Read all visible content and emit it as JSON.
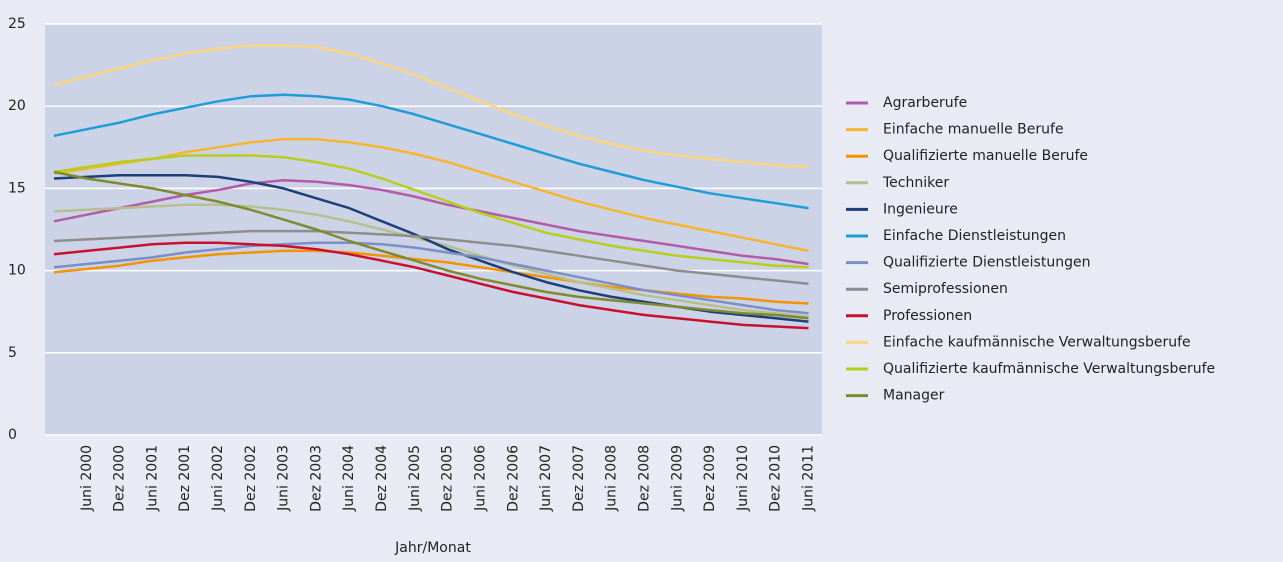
{
  "chart_data": {
    "type": "line",
    "x_label": "Jahr/Monat",
    "categories": [
      null,
      "Juni 2000",
      "Dez 2000",
      "Juni 2001",
      "Dez 2001",
      "Juni 2002",
      "Dez 2002",
      "Juni 2003",
      "Dez 2003",
      "Juni 2004",
      "Dez 2004",
      "Juni 2005",
      "Dez 2005",
      "Juni 2006",
      "Dez 2006",
      "Juni 2007",
      "Dez 2007",
      "Juni 2008",
      "Dez 2008",
      "Juni 2009",
      "Dez 2009",
      "Juni 2010",
      "Dez 2010",
      "Juni 2011"
    ],
    "ylim": [
      0,
      25
    ],
    "yticks": [
      0,
      5,
      10,
      15,
      20,
      25
    ],
    "grid": true,
    "series": [
      {
        "name": "Agrarberufe",
        "color": "#b45aa8",
        "values": [
          13.0,
          13.4,
          13.8,
          14.2,
          14.6,
          14.9,
          15.3,
          15.5,
          15.4,
          15.2,
          14.9,
          14.5,
          14.0,
          13.6,
          13.2,
          12.8,
          12.4,
          12.1,
          11.8,
          11.5,
          11.2,
          10.9,
          10.7,
          10.4
        ]
      },
      {
        "name": "Einfache manuelle Berufe",
        "color": "#f6b52e",
        "values": [
          15.9,
          16.2,
          16.5,
          16.8,
          17.2,
          17.5,
          17.8,
          18.0,
          18.0,
          17.8,
          17.5,
          17.1,
          16.6,
          16.0,
          15.4,
          14.8,
          14.2,
          13.7,
          13.2,
          12.8,
          12.4,
          12.0,
          11.6,
          11.2
        ]
      },
      {
        "name": "Qualifizierte manuelle Berufe",
        "color": "#f29400",
        "values": [
          9.9,
          10.1,
          10.3,
          10.6,
          10.8,
          11.0,
          11.1,
          11.2,
          11.2,
          11.1,
          10.9,
          10.7,
          10.5,
          10.2,
          9.9,
          9.6,
          9.3,
          9.0,
          8.8,
          8.6,
          8.4,
          8.3,
          8.1,
          8.0
        ]
      },
      {
        "name": "Techniker",
        "color": "#b7bf8c",
        "values": [
          13.6,
          13.7,
          13.8,
          13.9,
          14.0,
          14.0,
          13.9,
          13.7,
          13.4,
          13.0,
          12.5,
          12.0,
          11.5,
          10.9,
          10.3,
          9.8,
          9.3,
          8.9,
          8.5,
          8.2,
          7.9,
          7.6,
          7.4,
          7.2
        ]
      },
      {
        "name": "Ingenieure",
        "color": "#1c3f78",
        "values": [
          15.6,
          15.7,
          15.8,
          15.8,
          15.8,
          15.7,
          15.4,
          15.0,
          14.4,
          13.8,
          13.0,
          12.2,
          11.3,
          10.6,
          9.9,
          9.3,
          8.8,
          8.4,
          8.1,
          7.8,
          7.5,
          7.3,
          7.1,
          6.9
        ]
      },
      {
        "name": "Einfache Dienstleistungen",
        "color": "#1e9cd8",
        "values": [
          18.2,
          18.6,
          19.0,
          19.5,
          19.9,
          20.3,
          20.6,
          20.7,
          20.6,
          20.4,
          20.0,
          19.5,
          18.9,
          18.3,
          17.7,
          17.1,
          16.5,
          16.0,
          15.5,
          15.1,
          14.7,
          14.4,
          14.1,
          13.8
        ]
      },
      {
        "name": "Qualifizierte Dienstleistungen",
        "color": "#7a8fc6",
        "values": [
          10.2,
          10.4,
          10.6,
          10.8,
          11.1,
          11.3,
          11.5,
          11.6,
          11.7,
          11.7,
          11.6,
          11.4,
          11.1,
          10.8,
          10.4,
          10.0,
          9.6,
          9.2,
          8.8,
          8.5,
          8.2,
          7.9,
          7.6,
          7.4
        ]
      },
      {
        "name": "Semiprofessionen",
        "color": "#8d8d8f",
        "values": [
          11.8,
          11.9,
          12.0,
          12.1,
          12.2,
          12.3,
          12.4,
          12.4,
          12.4,
          12.3,
          12.2,
          12.1,
          11.9,
          11.7,
          11.5,
          11.2,
          10.9,
          10.6,
          10.3,
          10.0,
          9.8,
          9.6,
          9.4,
          9.2
        ]
      },
      {
        "name": "Professionen",
        "color": "#c8102e",
        "values": [
          11.0,
          11.2,
          11.4,
          11.6,
          11.7,
          11.7,
          11.6,
          11.5,
          11.3,
          11.0,
          10.6,
          10.2,
          9.7,
          9.2,
          8.7,
          8.3,
          7.9,
          7.6,
          7.3,
          7.1,
          6.9,
          6.7,
          6.6,
          6.5
        ]
      },
      {
        "name": "Einfache kaufmännische Verwaltungsberufe",
        "color": "#fcd67c",
        "values": [
          21.3,
          21.8,
          22.3,
          22.8,
          23.2,
          23.5,
          23.7,
          23.7,
          23.6,
          23.2,
          22.6,
          21.9,
          21.1,
          20.3,
          19.5,
          18.8,
          18.2,
          17.7,
          17.3,
          17.0,
          16.8,
          16.6,
          16.4,
          16.3
        ]
      },
      {
        "name": "Qualifizierte kaufmännische Verwaltungsberufe",
        "color": "#b6cf1b",
        "values": [
          16.0,
          16.3,
          16.6,
          16.8,
          17.0,
          17.0,
          17.0,
          16.9,
          16.6,
          16.2,
          15.6,
          14.9,
          14.2,
          13.5,
          12.9,
          12.3,
          11.9,
          11.5,
          11.2,
          10.9,
          10.7,
          10.5,
          10.3,
          10.2
        ]
      },
      {
        "name": "Manager",
        "color": "#7e8a2e",
        "values": [
          16.0,
          15.6,
          15.3,
          15.0,
          14.6,
          14.2,
          13.7,
          13.1,
          12.5,
          11.8,
          11.2,
          10.6,
          10.0,
          9.5,
          9.1,
          8.7,
          8.4,
          8.2,
          8.0,
          7.8,
          7.6,
          7.4,
          7.3,
          7.1
        ]
      }
    ]
  }
}
